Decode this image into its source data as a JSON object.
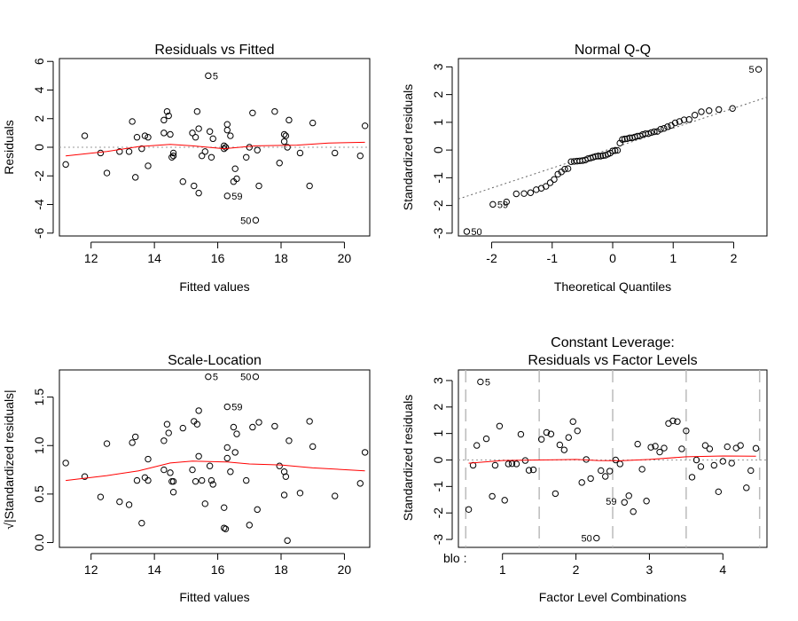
{
  "chart_data": [
    {
      "type": "scatter",
      "title": "Residuals vs Fitted",
      "xlabel": "Fitted values",
      "ylabel": "Residuals",
      "xlim": [
        11,
        20.8
      ],
      "ylim": [
        -6.2,
        6.2
      ],
      "xticks": [
        12,
        14,
        16,
        18,
        20
      ],
      "yticks": [
        -6,
        -4,
        -2,
        0,
        2,
        4,
        6
      ],
      "hline": 0,
      "points": [
        [
          11.2,
          -1.2
        ],
        [
          11.8,
          0.8
        ],
        [
          12.3,
          -0.4
        ],
        [
          12.5,
          -1.8
        ],
        [
          12.9,
          -0.3
        ],
        [
          13.2,
          -0.3
        ],
        [
          13.3,
          1.8
        ],
        [
          13.4,
          -2.1
        ],
        [
          13.45,
          0.7
        ],
        [
          13.6,
          -0.1
        ],
        [
          13.7,
          0.8
        ],
        [
          13.8,
          0.7
        ],
        [
          13.8,
          -1.3
        ],
        [
          14.3,
          1.9
        ],
        [
          14.3,
          1.0
        ],
        [
          14.4,
          2.5
        ],
        [
          14.45,
          2.2
        ],
        [
          14.5,
          0.9
        ],
        [
          14.55,
          -0.7
        ],
        [
          14.6,
          -0.4
        ],
        [
          14.6,
          -0.6
        ],
        [
          14.9,
          -2.4
        ],
        [
          15.2,
          1.0
        ],
        [
          15.25,
          -2.7
        ],
        [
          15.3,
          0.7
        ],
        [
          15.35,
          2.5
        ],
        [
          15.4,
          1.3
        ],
        [
          15.4,
          -3.2
        ],
        [
          15.5,
          -0.6
        ],
        [
          15.6,
          -0.3
        ],
        [
          15.7,
          5.0
        ],
        [
          15.75,
          1.1
        ],
        [
          15.8,
          -0.7
        ],
        [
          15.85,
          0.6
        ],
        [
          16.2,
          -0.1
        ],
        [
          16.2,
          0.1
        ],
        [
          16.25,
          0.0
        ],
        [
          16.3,
          -3.4
        ],
        [
          16.3,
          1.6
        ],
        [
          16.3,
          1.2
        ],
        [
          16.4,
          0.8
        ],
        [
          16.5,
          -2.4
        ],
        [
          16.55,
          -1.5
        ],
        [
          16.6,
          -2.2
        ],
        [
          16.9,
          -0.7
        ],
        [
          17.0,
          0.0
        ],
        [
          17.1,
          2.4
        ],
        [
          17.2,
          -5.1
        ],
        [
          17.25,
          -0.2
        ],
        [
          17.3,
          -2.7
        ],
        [
          17.8,
          2.5
        ],
        [
          17.95,
          -1.1
        ],
        [
          18.1,
          0.4
        ],
        [
          18.1,
          0.9
        ],
        [
          18.15,
          0.8
        ],
        [
          18.2,
          0.0
        ],
        [
          18.25,
          1.9
        ],
        [
          18.6,
          -0.4
        ],
        [
          18.9,
          -2.7
        ],
        [
          19.0,
          1.7
        ],
        [
          19.7,
          -0.4
        ],
        [
          20.5,
          -0.6
        ],
        [
          20.65,
          1.5
        ]
      ],
      "smoother": [
        [
          11.2,
          -0.6
        ],
        [
          12.5,
          -0.3
        ],
        [
          13.5,
          0.05
        ],
        [
          14.5,
          0.2
        ],
        [
          15.2,
          0.1
        ],
        [
          16.2,
          -0.1
        ],
        [
          17.2,
          0.1
        ],
        [
          18.5,
          0.15
        ],
        [
          19.5,
          0.3
        ],
        [
          20.65,
          0.35
        ]
      ],
      "labels": [
        {
          "text": "5",
          "x": 15.7,
          "y": 5.0
        },
        {
          "text": "59",
          "x": 16.3,
          "y": -3.4
        },
        {
          "text": "50",
          "x": 17.2,
          "y": -5.1,
          "side": "left"
        }
      ]
    },
    {
      "type": "scatter",
      "title": "Normal Q-Q",
      "xlabel": "Theoretical Quantiles",
      "ylabel": "Standardized residuals",
      "xlim": [
        -2.55,
        2.55
      ],
      "ylim": [
        -3.1,
        3.3
      ],
      "xticks": [
        -2,
        -1,
        0,
        1,
        2
      ],
      "yticks": [
        -3,
        -2,
        -1,
        0,
        1,
        2,
        3
      ],
      "refline": {
        "slope": 0.72,
        "intercept": 0.07
      },
      "sample": [
        -2.94,
        -1.96,
        -1.87,
        -1.58,
        -1.57,
        -1.54,
        -1.43,
        -1.38,
        -1.31,
        -1.18,
        -1.06,
        -0.87,
        -0.79,
        -0.69,
        -0.67,
        -0.42,
        -0.41,
        -0.4,
        -0.39,
        -0.38,
        -0.36,
        -0.31,
        -0.29,
        -0.26,
        -0.23,
        -0.22,
        -0.22,
        -0.2,
        -0.19,
        -0.15,
        -0.11,
        -0.03,
        -0.02,
        -0.01,
        0.25,
        0.38,
        0.4,
        0.41,
        0.44,
        0.44,
        0.47,
        0.5,
        0.51,
        0.56,
        0.59,
        0.59,
        0.63,
        0.66,
        0.67,
        0.75,
        0.78,
        0.84,
        0.89,
        0.98,
        1.03,
        1.09,
        1.1,
        1.26,
        1.38,
        1.42,
        1.46,
        1.5,
        2.91
      ],
      "labels": [
        {
          "text": "5",
          "index": 62,
          "side": "left"
        },
        {
          "text": "59",
          "index": 1,
          "side": "right"
        },
        {
          "text": "50",
          "index": 0,
          "side": "right"
        }
      ]
    },
    {
      "type": "scatter",
      "title": "Scale-Location",
      "xlabel": "Fitted values",
      "ylabel": "√|Standardized residuals|",
      "xlim": [
        11,
        20.8
      ],
      "ylim": [
        -0.05,
        1.78
      ],
      "xticks": [
        12,
        14,
        16,
        18,
        20
      ],
      "yticks": [
        0.0,
        0.5,
        1.0,
        1.5
      ],
      "points": [
        [
          11.2,
          0.82
        ],
        [
          11.8,
          0.68
        ],
        [
          12.3,
          0.47
        ],
        [
          12.5,
          1.02
        ],
        [
          12.9,
          0.42
        ],
        [
          13.2,
          0.39
        ],
        [
          13.3,
          1.03
        ],
        [
          13.4,
          1.09
        ],
        [
          13.45,
          0.64
        ],
        [
          13.6,
          0.2
        ],
        [
          13.7,
          0.67
        ],
        [
          13.8,
          0.64
        ],
        [
          13.8,
          0.86
        ],
        [
          14.3,
          1.05
        ],
        [
          14.3,
          0.75
        ],
        [
          14.4,
          1.22
        ],
        [
          14.45,
          1.13
        ],
        [
          14.5,
          0.72
        ],
        [
          14.55,
          0.63
        ],
        [
          14.6,
          0.52
        ],
        [
          14.6,
          0.63
        ],
        [
          14.9,
          1.18
        ],
        [
          15.2,
          0.75
        ],
        [
          15.25,
          1.25
        ],
        [
          15.3,
          0.63
        ],
        [
          15.35,
          1.22
        ],
        [
          15.4,
          0.89
        ],
        [
          15.4,
          1.36
        ],
        [
          15.5,
          0.64
        ],
        [
          15.6,
          0.4
        ],
        [
          15.7,
          1.71
        ],
        [
          15.75,
          0.79
        ],
        [
          15.8,
          0.64
        ],
        [
          15.85,
          0.6
        ],
        [
          16.2,
          0.36
        ],
        [
          16.2,
          0.15
        ],
        [
          16.25,
          0.14
        ],
        [
          16.3,
          1.4
        ],
        [
          16.3,
          0.98
        ],
        [
          16.3,
          0.87
        ],
        [
          16.4,
          0.73
        ],
        [
          16.5,
          1.19
        ],
        [
          16.55,
          0.93
        ],
        [
          16.6,
          1.12
        ],
        [
          16.9,
          0.64
        ],
        [
          17.0,
          0.18
        ],
        [
          17.1,
          1.19
        ],
        [
          17.2,
          1.71
        ],
        [
          17.25,
          0.34
        ],
        [
          17.3,
          1.24
        ],
        [
          17.8,
          1.2
        ],
        [
          17.95,
          0.79
        ],
        [
          18.1,
          0.49
        ],
        [
          18.1,
          0.73
        ],
        [
          18.15,
          0.68
        ],
        [
          18.2,
          0.02
        ],
        [
          18.25,
          1.05
        ],
        [
          18.6,
          0.51
        ],
        [
          18.9,
          1.25
        ],
        [
          19.0,
          0.99
        ],
        [
          19.7,
          0.48
        ],
        [
          20.5,
          0.61
        ],
        [
          20.65,
          0.93
        ]
      ],
      "smoother": [
        [
          11.2,
          0.64
        ],
        [
          12.5,
          0.69
        ],
        [
          13.5,
          0.74
        ],
        [
          14.5,
          0.82
        ],
        [
          15.2,
          0.84
        ],
        [
          16.3,
          0.83
        ],
        [
          17.0,
          0.81
        ],
        [
          18.0,
          0.8
        ],
        [
          19.0,
          0.77
        ],
        [
          20.65,
          0.74
        ]
      ],
      "labels": [
        {
          "text": "5",
          "x": 15.7,
          "y": 1.71
        },
        {
          "text": "59",
          "x": 16.3,
          "y": 1.4
        },
        {
          "text": "50",
          "x": 17.2,
          "y": 1.71,
          "side": "left"
        }
      ]
    },
    {
      "type": "scatter",
      "title_lines": [
        "Constant Leverage:",
        "Residuals vs Factor Levels"
      ],
      "xlabel": "Factor Level Combinations",
      "ylabel": "Standardized residuals",
      "factor_label": "blo :",
      "xlim": [
        0.4,
        4.6
      ],
      "ylim": [
        -3.3,
        3.4
      ],
      "xticks": [
        1,
        2,
        3,
        4
      ],
      "yticks": [
        -3,
        -2,
        -1,
        0,
        1,
        2,
        3
      ],
      "hline": 0,
      "separators": [
        0.5,
        1.5,
        2.5,
        3.5,
        4.5
      ],
      "points": [
        [
          0.54,
          -1.87
        ],
        [
          0.6,
          -0.2
        ],
        [
          0.65,
          0.55
        ],
        [
          0.7,
          2.95
        ],
        [
          0.78,
          0.8
        ],
        [
          0.86,
          -1.37
        ],
        [
          0.9,
          -0.2
        ],
        [
          0.96,
          1.28
        ],
        [
          1.03,
          -1.52
        ],
        [
          1.08,
          -0.15
        ],
        [
          1.13,
          -0.14
        ],
        [
          1.19,
          -0.15
        ],
        [
          1.25,
          0.97
        ],
        [
          1.31,
          -0.02
        ],
        [
          1.36,
          -0.39
        ],
        [
          1.42,
          -0.37
        ],
        [
          1.53,
          0.78
        ],
        [
          1.6,
          1.04
        ],
        [
          1.66,
          0.98
        ],
        [
          1.72,
          -1.27
        ],
        [
          1.78,
          0.57
        ],
        [
          1.84,
          0.38
        ],
        [
          1.9,
          0.85
        ],
        [
          1.96,
          1.45
        ],
        [
          2.02,
          1.1
        ],
        [
          2.08,
          -0.85
        ],
        [
          2.14,
          0.02
        ],
        [
          2.2,
          -0.7
        ],
        [
          2.28,
          -2.95
        ],
        [
          2.34,
          -0.4
        ],
        [
          2.4,
          -0.62
        ],
        [
          2.46,
          -0.42
        ],
        [
          2.54,
          0.0
        ],
        [
          2.6,
          -0.15
        ],
        [
          2.66,
          -1.6
        ],
        [
          2.72,
          -1.35
        ],
        [
          2.78,
          -1.95
        ],
        [
          2.84,
          0.6
        ],
        [
          2.9,
          -0.35
        ],
        [
          2.96,
          -1.55
        ],
        [
          3.02,
          0.48
        ],
        [
          3.08,
          0.52
        ],
        [
          3.14,
          0.3
        ],
        [
          3.2,
          0.45
        ],
        [
          3.26,
          1.38
        ],
        [
          3.32,
          1.48
        ],
        [
          3.38,
          1.45
        ],
        [
          3.44,
          0.42
        ],
        [
          3.5,
          1.1
        ],
        [
          3.58,
          -0.65
        ],
        [
          3.64,
          0.0
        ],
        [
          3.7,
          -0.25
        ],
        [
          3.76,
          0.55
        ],
        [
          3.82,
          0.42
        ],
        [
          3.88,
          -0.2
        ],
        [
          3.94,
          -1.2
        ],
        [
          4.0,
          -0.05
        ],
        [
          4.06,
          0.5
        ],
        [
          4.12,
          -0.12
        ],
        [
          4.18,
          0.45
        ],
        [
          4.24,
          0.55
        ],
        [
          4.32,
          -1.05
        ],
        [
          4.38,
          -0.4
        ],
        [
          4.45,
          0.44
        ]
      ],
      "smoother": [
        [
          0.54,
          -0.12
        ],
        [
          1.0,
          -0.02
        ],
        [
          1.5,
          0.0
        ],
        [
          2.0,
          0.02
        ],
        [
          2.3,
          -0.02
        ],
        [
          2.6,
          -0.03
        ],
        [
          3.0,
          0.02
        ],
        [
          3.5,
          0.12
        ],
        [
          4.0,
          0.15
        ],
        [
          4.45,
          0.14
        ]
      ],
      "labels": [
        {
          "text": "5",
          "x": 0.7,
          "y": 2.95
        },
        {
          "text": "59",
          "x": 2.72,
          "y": -1.35,
          "dx": -26,
          "dy": 10
        },
        {
          "text": "50",
          "x": 2.28,
          "y": -2.95,
          "side": "left"
        }
      ]
    }
  ]
}
